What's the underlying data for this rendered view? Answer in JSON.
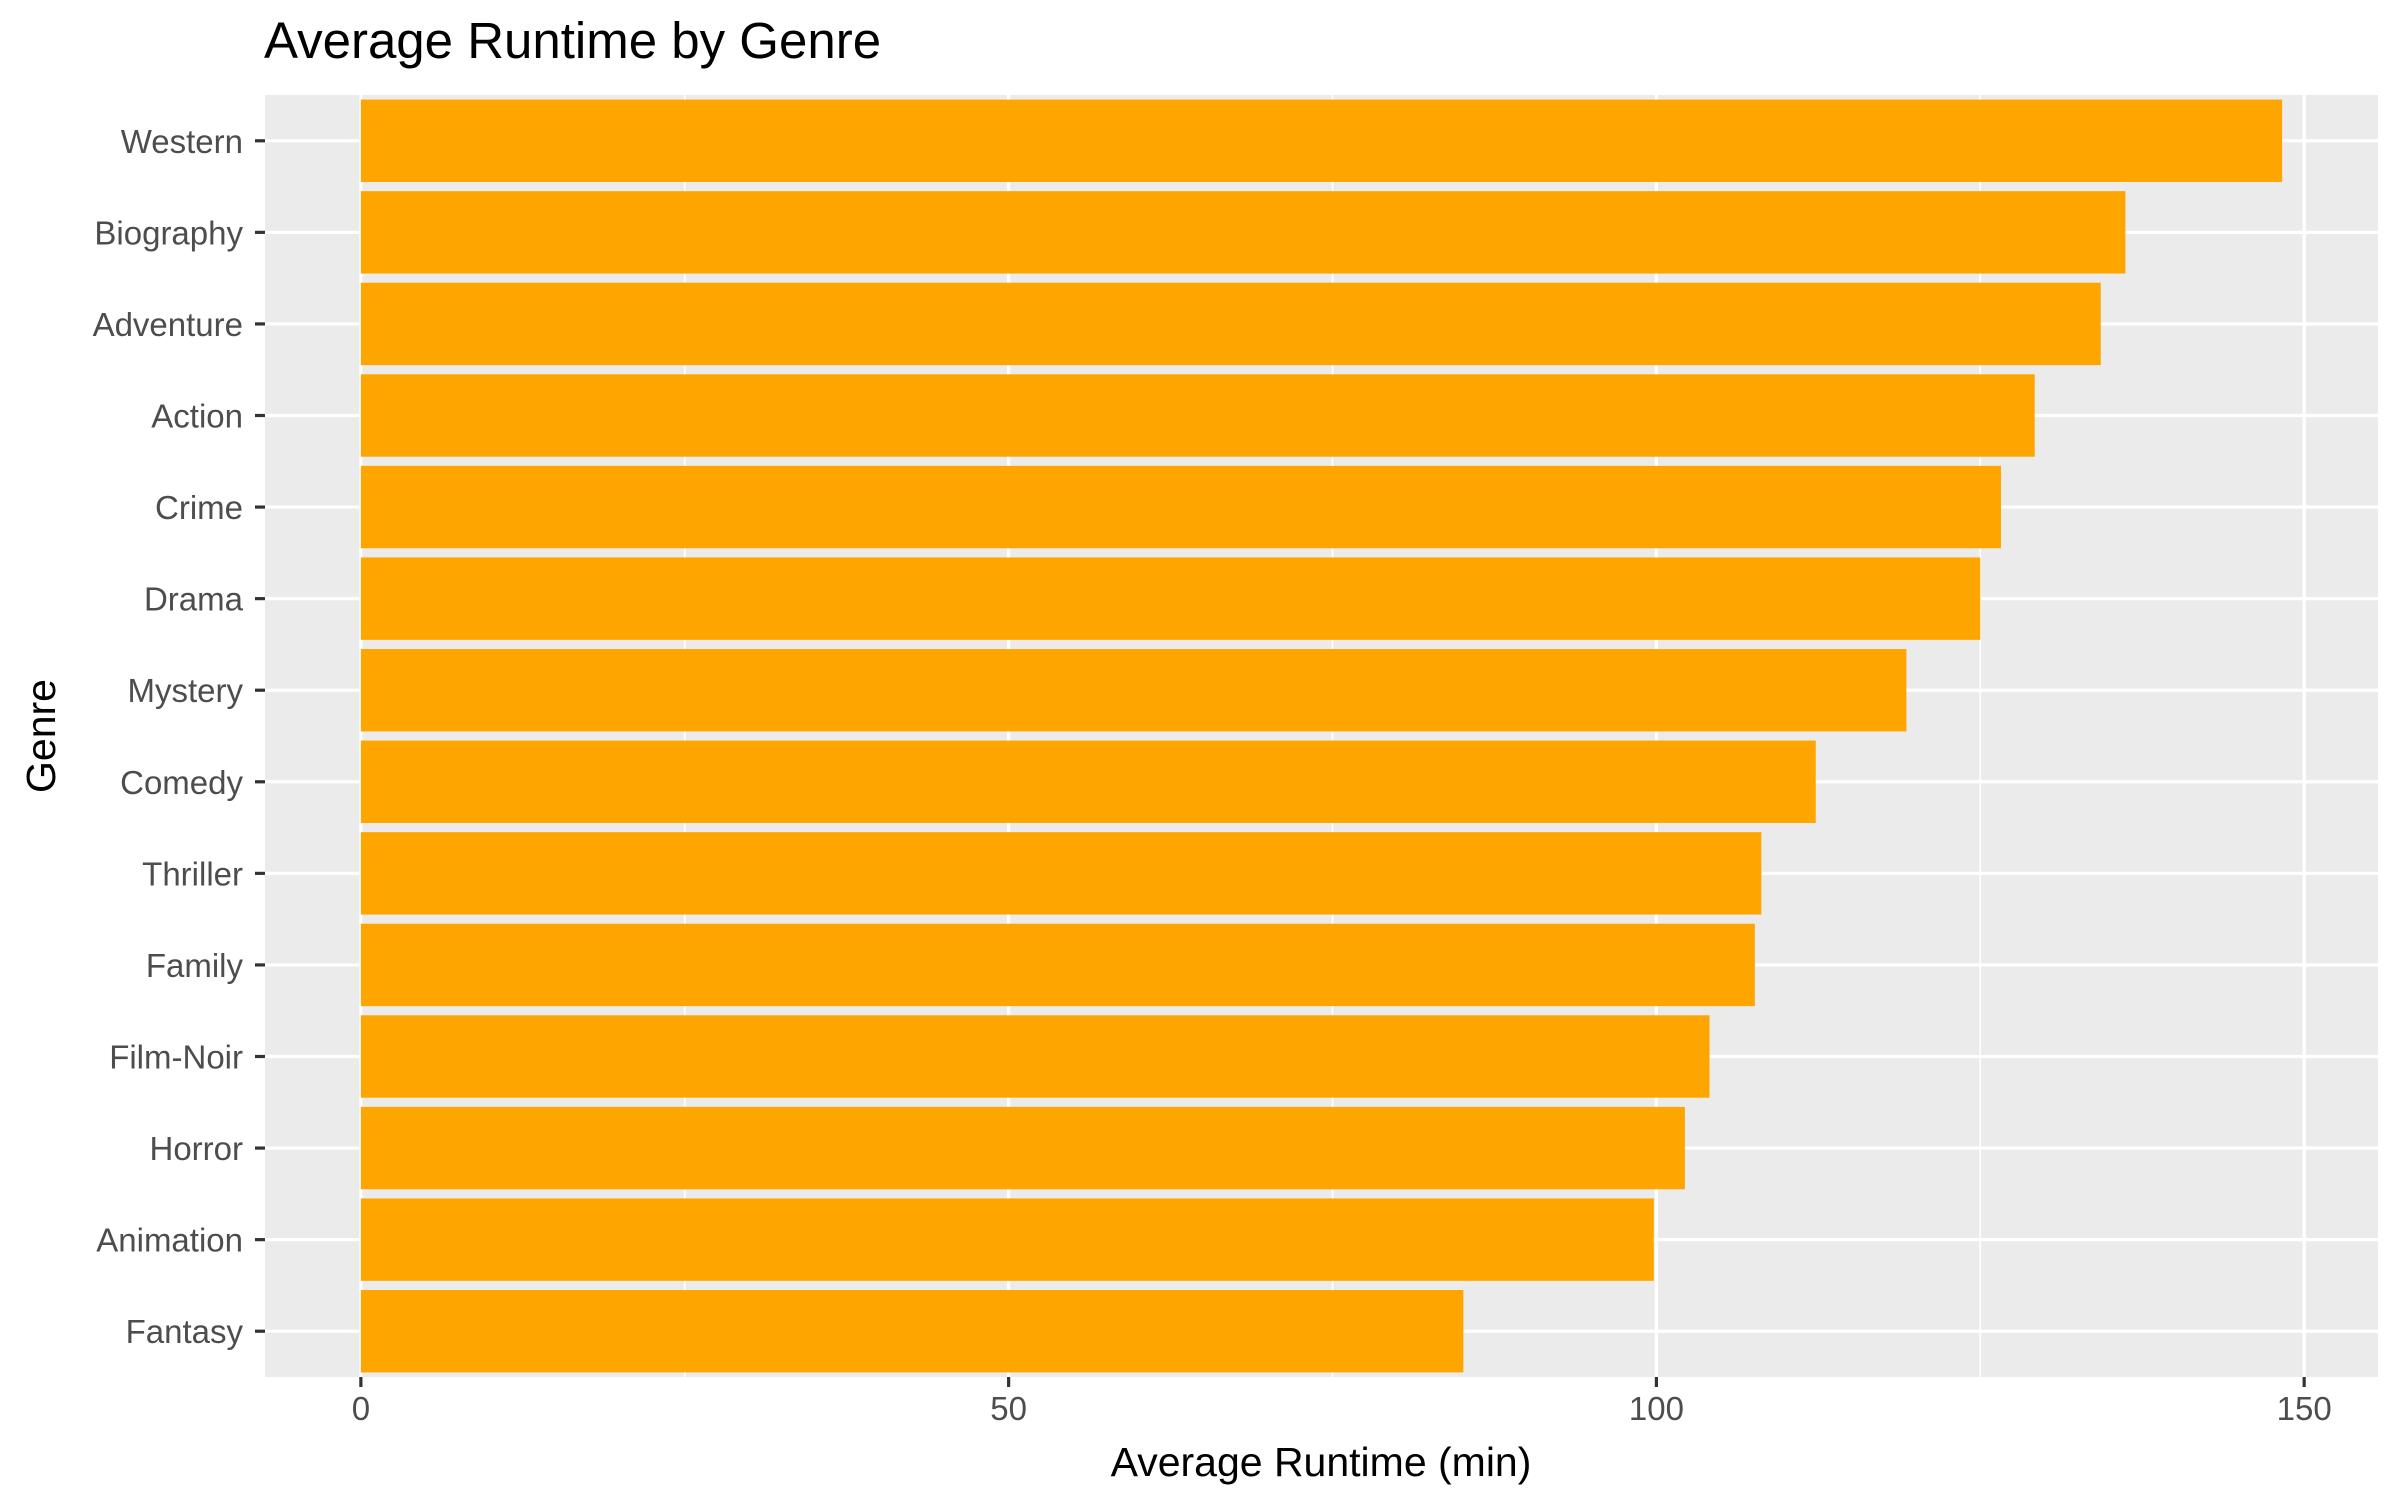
{
  "chart_data": {
    "type": "bar",
    "orientation": "horizontal",
    "title": "Average Runtime by Genre",
    "xlabel": "Average Runtime (min)",
    "ylabel": "Genre",
    "categories": [
      "Western",
      "Biography",
      "Adventure",
      "Action",
      "Crime",
      "Drama",
      "Mystery",
      "Comedy",
      "Thriller",
      "Family",
      "Film-Noir",
      "Horror",
      "Animation",
      "Fantasy"
    ],
    "values": [
      148.3,
      136.2,
      134.3,
      129.2,
      126.6,
      125.0,
      119.3,
      112.3,
      108.1,
      107.6,
      104.1,
      102.2,
      99.8,
      85.1
    ],
    "xlim": [
      -7.4,
      155.7
    ],
    "xticks": [
      0,
      50,
      100,
      150
    ],
    "xtick_labels": [
      "0",
      "50",
      "100",
      "150"
    ],
    "bar_color": "#FFA500",
    "panel_background": "#EBEBEB",
    "grid_color": "#FFFFFF",
    "grid": true,
    "legend": "none"
  }
}
